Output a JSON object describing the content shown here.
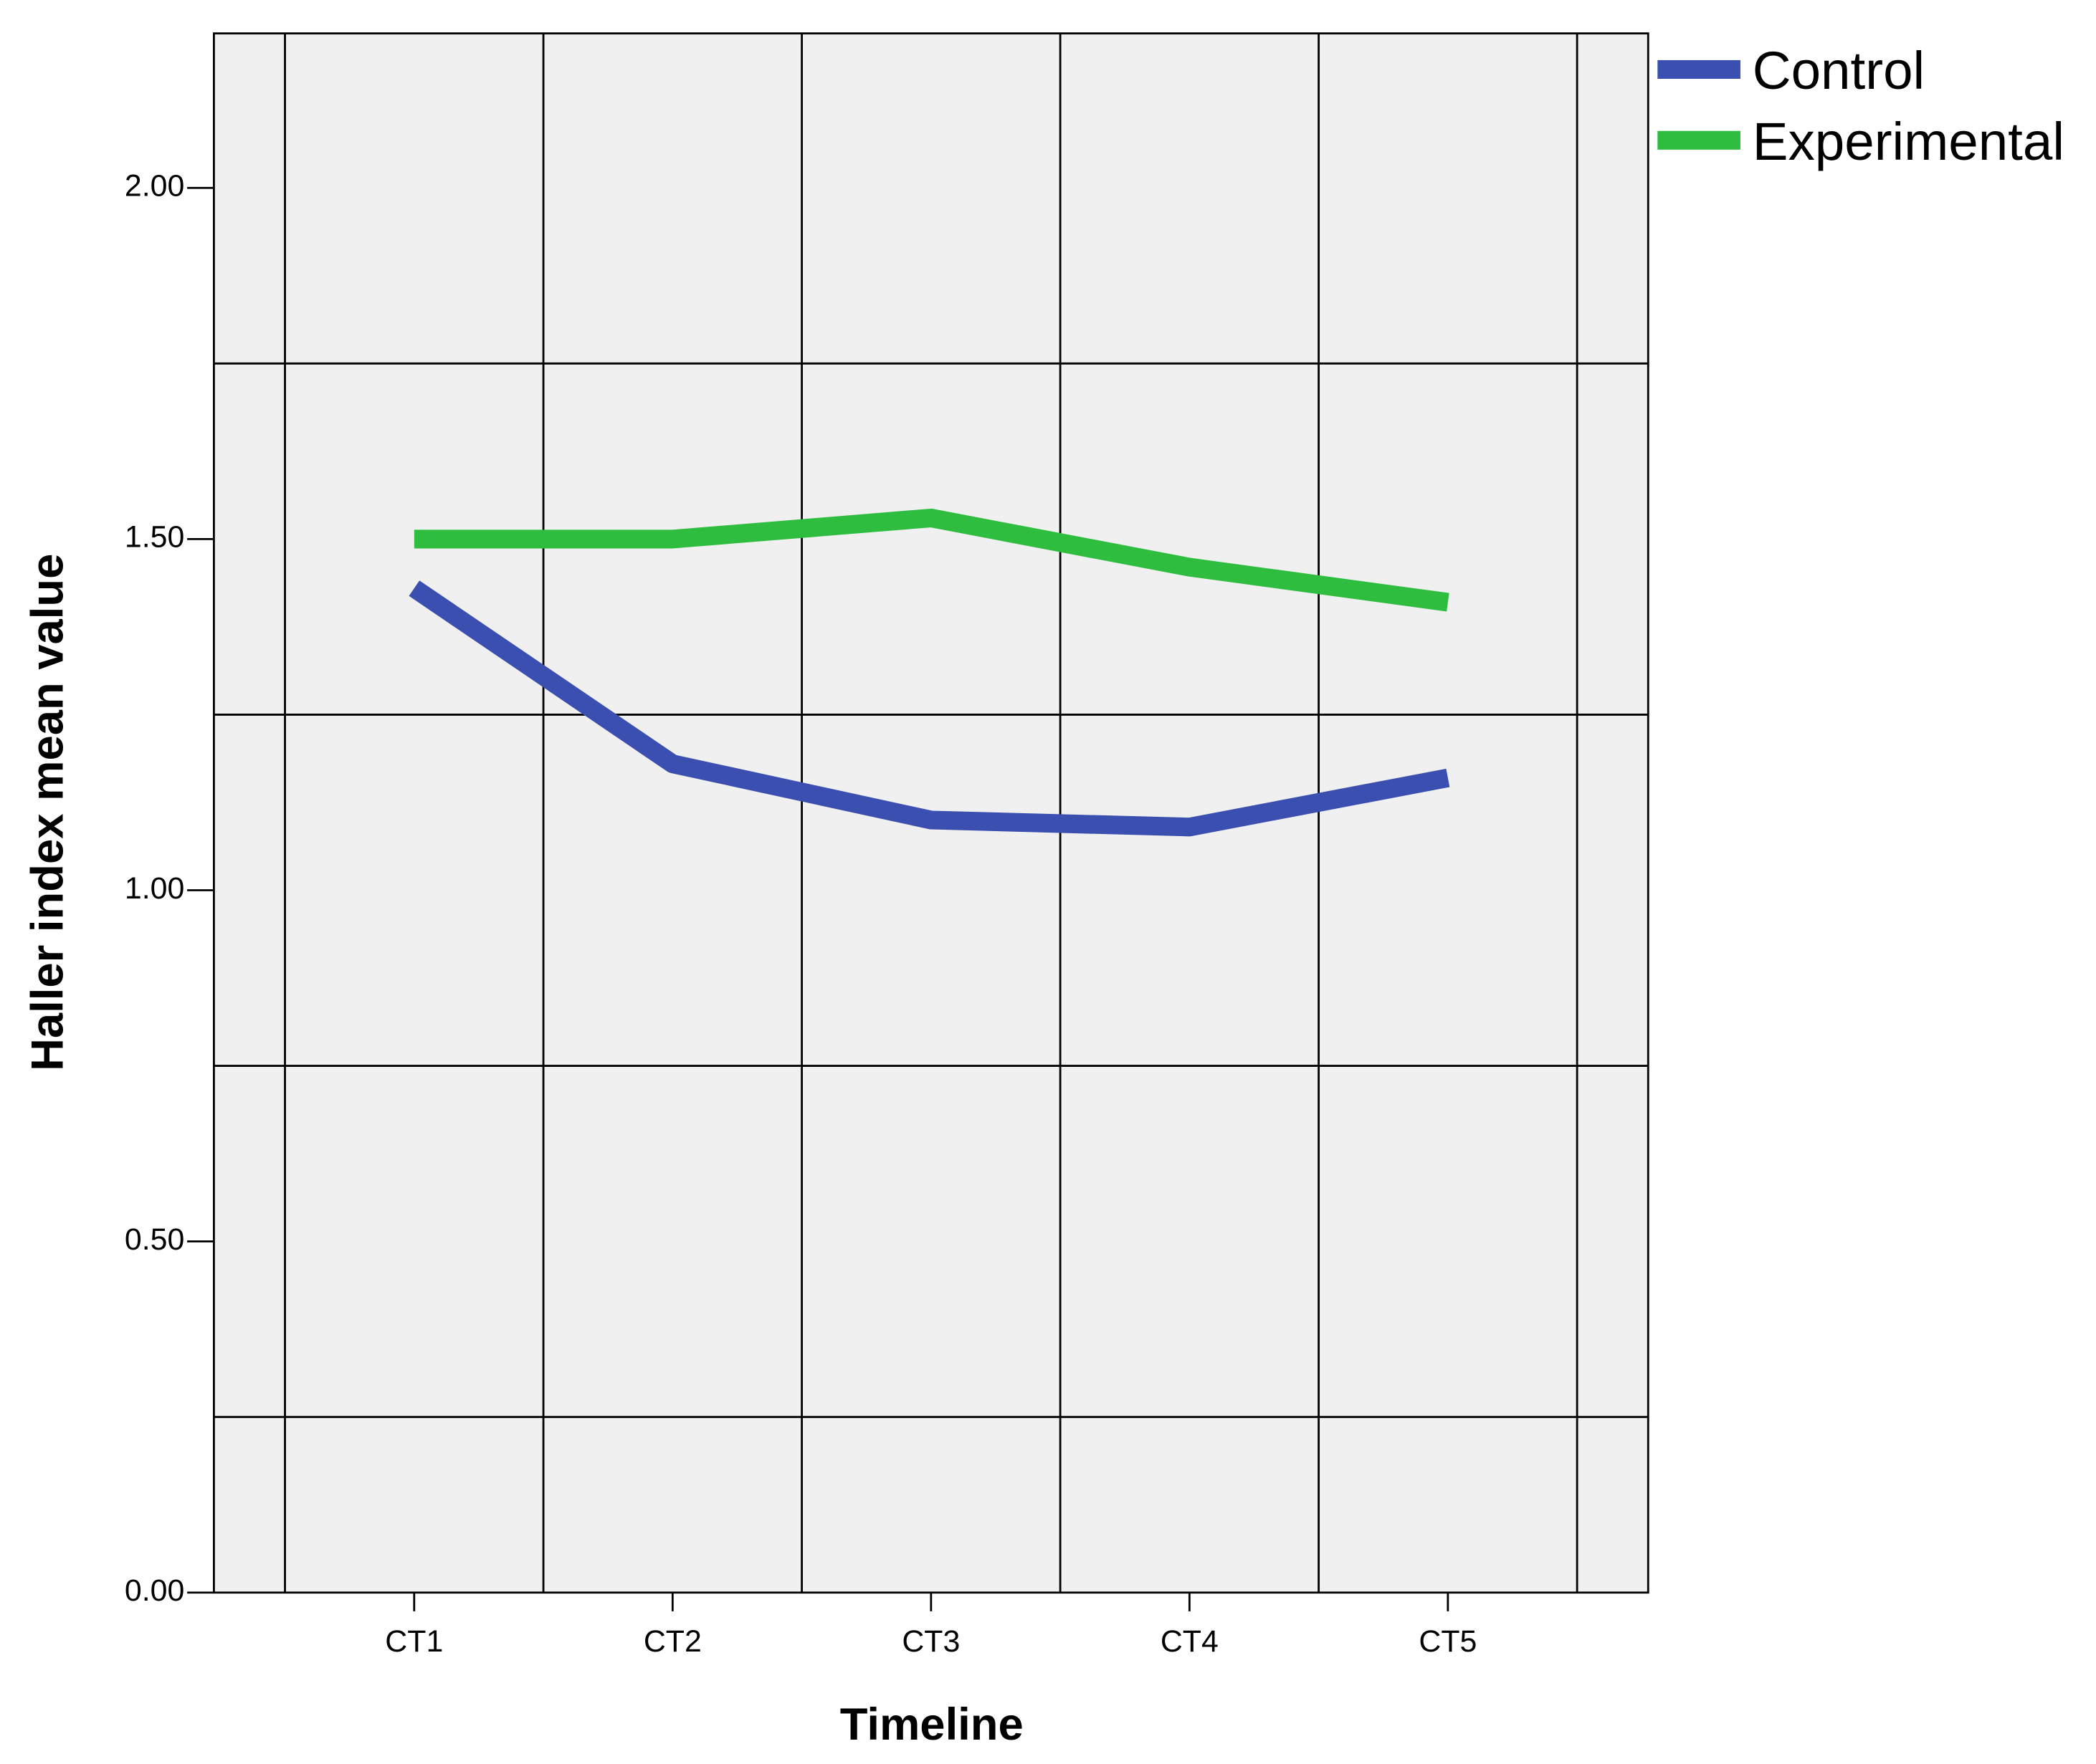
{
  "chart_data": {
    "type": "line",
    "x_label": "Timeline",
    "y_label": "Haller index mean value",
    "categories": [
      "CT1",
      "CT2",
      "CT3",
      "CT4",
      "CT5"
    ],
    "series": [
      {
        "name": "Control",
        "color": "#3b4fb0",
        "values": [
          1.43,
          1.18,
          1.1,
          1.09,
          1.16
        ]
      },
      {
        "name": "Experimental",
        "color": "#2ebd3f",
        "values": [
          1.5,
          1.5,
          1.53,
          1.46,
          1.41
        ]
      }
    ],
    "ylim": [
      0,
      2.22
    ],
    "yticks": [
      {
        "value": 0,
        "label": "0.00"
      },
      {
        "value": 0.5,
        "label": "0.50"
      },
      {
        "value": 1,
        "label": "1.00"
      },
      {
        "value": 1.5,
        "label": "1.50"
      },
      {
        "value": 2,
        "label": "2.00"
      }
    ],
    "ygrid": [
      0.25,
      0.75,
      1.25,
      1.75
    ],
    "background": "#f0f0f0",
    "legend": "right"
  }
}
